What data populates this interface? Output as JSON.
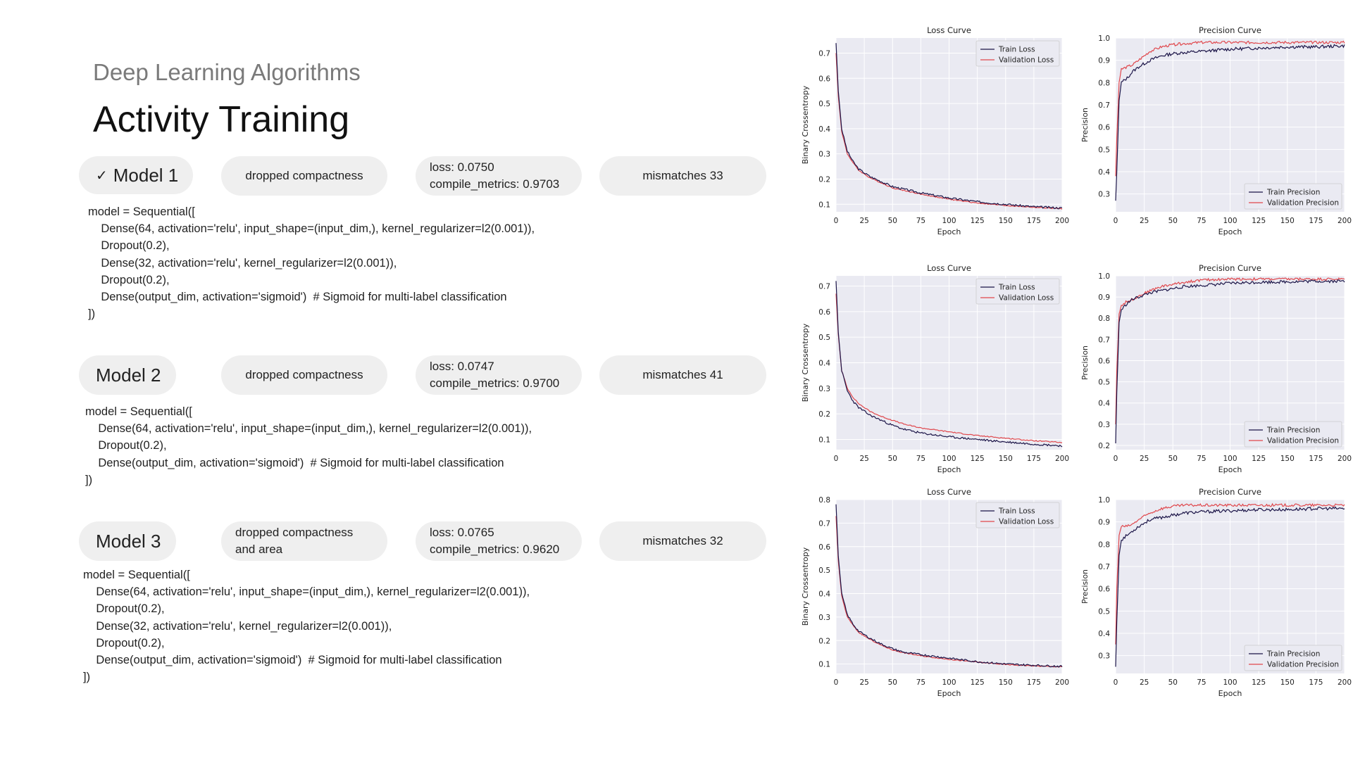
{
  "header": {
    "subtitle": "Deep Learning Algorithms",
    "title": "Activity Training"
  },
  "models": [
    {
      "name": "Model 1",
      "selected": true,
      "dropped": [
        "dropped compactness"
      ],
      "loss": "loss: 0.0750",
      "metrics": "compile_metrics: 0.9703",
      "mismatches": "mismatches 33",
      "code": "model = Sequential([\n    Dense(64, activation='relu', input_shape=(input_dim,), kernel_regularizer=l2(0.001)),\n    Dropout(0.2),\n    Dense(32, activation='relu', kernel_regularizer=l2(0.001)),\n    Dropout(0.2),\n    Dense(output_dim, activation='sigmoid')  # Sigmoid for multi-label classification\n])"
    },
    {
      "name": "Model 2",
      "selected": false,
      "dropped": [
        "dropped compactness"
      ],
      "loss": "loss: 0.0747",
      "metrics": "compile_metrics: 0.9700",
      "mismatches": "mismatches 41",
      "code": "model = Sequential([\n    Dense(64, activation='relu', input_shape=(input_dim,), kernel_regularizer=l2(0.001)),\n    Dropout(0.2),\n    Dense(output_dim, activation='sigmoid')  # Sigmoid for multi-label classification\n])"
    },
    {
      "name": "Model 3",
      "selected": false,
      "dropped": [
        "dropped compactness",
        "and area"
      ],
      "loss": "loss: 0.0765",
      "metrics": "compile_metrics: 0.9620",
      "mismatches": "mismatches 32",
      "code": "model = Sequential([\n    Dense(64, activation='relu', input_shape=(input_dim,), kernel_regularizer=l2(0.001)),\n    Dropout(0.2),\n    Dense(32, activation='relu', kernel_regularizer=l2(0.001)),\n    Dropout(0.2),\n    Dense(output_dim, activation='sigmoid')  # Sigmoid for multi-label classification\n])"
    }
  ],
  "colors": {
    "train": "#1b1447",
    "validation": "#e0474c",
    "plot_bg": "#eaeaf2",
    "grid": "#ffffff"
  },
  "chart_data": [
    {
      "type": "line",
      "title": "Loss Curve",
      "xlabel": "Epoch",
      "ylabel": "Binary Crossentropy",
      "xlim": [
        0,
        200
      ],
      "ylim": [
        0.07,
        0.76
      ],
      "xticks": [
        0,
        25,
        50,
        75,
        100,
        125,
        150,
        175,
        200
      ],
      "yticks": [
        0.1,
        0.2,
        0.3,
        0.4,
        0.5,
        0.6,
        0.7
      ],
      "legend": "top-right",
      "grid": true,
      "series": [
        {
          "name": "Train Loss",
          "x": [
            0,
            2,
            5,
            10,
            15,
            20,
            30,
            40,
            50,
            60,
            75,
            100,
            125,
            150,
            175,
            200
          ],
          "y": [
            0.74,
            0.55,
            0.4,
            0.31,
            0.27,
            0.24,
            0.21,
            0.19,
            0.17,
            0.16,
            0.145,
            0.125,
            0.11,
            0.1,
            0.09,
            0.085
          ]
        },
        {
          "name": "Validation Loss",
          "x": [
            0,
            2,
            5,
            10,
            15,
            20,
            30,
            40,
            50,
            60,
            75,
            100,
            125,
            150,
            175,
            200
          ],
          "y": [
            0.7,
            0.53,
            0.39,
            0.3,
            0.265,
            0.235,
            0.205,
            0.185,
            0.165,
            0.155,
            0.14,
            0.12,
            0.105,
            0.095,
            0.088,
            0.082
          ]
        }
      ]
    },
    {
      "type": "line",
      "title": "Precision Curve",
      "xlabel": "Epoch",
      "ylabel": "Precision",
      "xlim": [
        0,
        200
      ],
      "ylim": [
        0.22,
        1.0
      ],
      "xticks": [
        0,
        25,
        50,
        75,
        100,
        125,
        150,
        175,
        200
      ],
      "yticks": [
        0.3,
        0.4,
        0.5,
        0.6,
        0.7,
        0.8,
        0.9,
        1.0
      ],
      "legend": "bottom-right",
      "grid": true,
      "series": [
        {
          "name": "Train Precision",
          "x": [
            0,
            1,
            3,
            5,
            10,
            15,
            20,
            30,
            40,
            50,
            60,
            75,
            100,
            125,
            150,
            175,
            200
          ],
          "y": [
            0.27,
            0.4,
            0.72,
            0.8,
            0.82,
            0.85,
            0.87,
            0.9,
            0.92,
            0.93,
            0.935,
            0.94,
            0.95,
            0.955,
            0.96,
            0.96,
            0.965
          ]
        },
        {
          "name": "Validation Precision",
          "x": [
            0,
            1,
            3,
            5,
            10,
            15,
            20,
            30,
            40,
            50,
            60,
            75,
            100,
            125,
            150,
            175,
            200
          ],
          "y": [
            0.38,
            0.55,
            0.8,
            0.86,
            0.87,
            0.88,
            0.9,
            0.94,
            0.96,
            0.97,
            0.975,
            0.98,
            0.98,
            0.98,
            0.98,
            0.98,
            0.98
          ]
        }
      ]
    },
    {
      "type": "line",
      "title": "Loss Curve",
      "xlabel": "Epoch",
      "ylabel": "Binary Crossentropy",
      "xlim": [
        0,
        200
      ],
      "ylim": [
        0.06,
        0.74
      ],
      "xticks": [
        0,
        25,
        50,
        75,
        100,
        125,
        150,
        175,
        200
      ],
      "yticks": [
        0.1,
        0.2,
        0.3,
        0.4,
        0.5,
        0.6,
        0.7
      ],
      "legend": "top-right",
      "grid": true,
      "series": [
        {
          "name": "Train Loss",
          "x": [
            0,
            2,
            5,
            10,
            15,
            20,
            30,
            40,
            50,
            60,
            75,
            100,
            125,
            150,
            175,
            200
          ],
          "y": [
            0.72,
            0.52,
            0.37,
            0.29,
            0.25,
            0.225,
            0.195,
            0.175,
            0.155,
            0.14,
            0.125,
            0.11,
            0.1,
            0.09,
            0.082,
            0.075
          ]
        },
        {
          "name": "Validation Loss",
          "x": [
            0,
            2,
            5,
            10,
            15,
            20,
            30,
            40,
            50,
            60,
            75,
            100,
            125,
            150,
            175,
            200
          ],
          "y": [
            0.67,
            0.51,
            0.37,
            0.3,
            0.265,
            0.24,
            0.21,
            0.19,
            0.175,
            0.16,
            0.145,
            0.13,
            0.115,
            0.105,
            0.095,
            0.088
          ]
        }
      ]
    },
    {
      "type": "line",
      "title": "Precision Curve",
      "xlabel": "Epoch",
      "ylabel": "Precision",
      "xlim": [
        0,
        200
      ],
      "ylim": [
        0.18,
        1.0
      ],
      "xticks": [
        0,
        25,
        50,
        75,
        100,
        125,
        150,
        175,
        200
      ],
      "yticks": [
        0.2,
        0.3,
        0.4,
        0.5,
        0.6,
        0.7,
        0.8,
        0.9,
        1.0
      ],
      "legend": "bottom-right",
      "grid": true,
      "series": [
        {
          "name": "Train Precision",
          "x": [
            0,
            1,
            3,
            5,
            10,
            15,
            20,
            30,
            40,
            50,
            60,
            75,
            100,
            125,
            150,
            175,
            200
          ],
          "y": [
            0.21,
            0.45,
            0.78,
            0.84,
            0.87,
            0.89,
            0.9,
            0.92,
            0.93,
            0.94,
            0.95,
            0.955,
            0.965,
            0.97,
            0.972,
            0.975,
            0.975
          ]
        },
        {
          "name": "Validation Precision",
          "x": [
            0,
            1,
            3,
            5,
            10,
            15,
            20,
            30,
            40,
            50,
            60,
            75,
            100,
            125,
            150,
            175,
            200
          ],
          "y": [
            0.3,
            0.55,
            0.82,
            0.86,
            0.88,
            0.89,
            0.905,
            0.93,
            0.95,
            0.96,
            0.97,
            0.98,
            0.985,
            0.985,
            0.985,
            0.985,
            0.985
          ]
        }
      ]
    },
    {
      "type": "line",
      "title": "Loss Curve",
      "xlabel": "Epoch",
      "ylabel": "Binary Crossentropy",
      "xlim": [
        0,
        200
      ],
      "ylim": [
        0.06,
        0.8
      ],
      "xticks": [
        0,
        25,
        50,
        75,
        100,
        125,
        150,
        175,
        200
      ],
      "yticks": [
        0.1,
        0.2,
        0.3,
        0.4,
        0.5,
        0.6,
        0.7,
        0.8
      ],
      "legend": "top-right",
      "grid": true,
      "series": [
        {
          "name": "Train Loss",
          "x": [
            0,
            2,
            5,
            10,
            15,
            20,
            30,
            40,
            50,
            60,
            75,
            100,
            125,
            150,
            175,
            200
          ],
          "y": [
            0.78,
            0.56,
            0.4,
            0.31,
            0.27,
            0.24,
            0.21,
            0.185,
            0.165,
            0.15,
            0.14,
            0.125,
            0.11,
            0.1,
            0.095,
            0.09
          ]
        },
        {
          "name": "Validation Loss",
          "x": [
            0,
            2,
            5,
            10,
            15,
            20,
            30,
            40,
            50,
            60,
            75,
            100,
            125,
            150,
            175,
            200
          ],
          "y": [
            0.73,
            0.54,
            0.39,
            0.3,
            0.265,
            0.235,
            0.205,
            0.18,
            0.16,
            0.148,
            0.135,
            0.12,
            0.108,
            0.098,
            0.092,
            0.088
          ]
        }
      ]
    },
    {
      "type": "line",
      "title": "Precision Curve",
      "xlabel": "Epoch",
      "ylabel": "Precision",
      "xlim": [
        0,
        200
      ],
      "ylim": [
        0.22,
        1.0
      ],
      "xticks": [
        0,
        25,
        50,
        75,
        100,
        125,
        150,
        175,
        200
      ],
      "yticks": [
        0.3,
        0.4,
        0.5,
        0.6,
        0.7,
        0.8,
        0.9,
        1.0
      ],
      "legend": "bottom-right",
      "grid": true,
      "series": [
        {
          "name": "Train Precision",
          "x": [
            0,
            1,
            3,
            5,
            10,
            15,
            20,
            30,
            40,
            50,
            60,
            75,
            100,
            125,
            150,
            175,
            200
          ],
          "y": [
            0.25,
            0.45,
            0.75,
            0.82,
            0.84,
            0.86,
            0.88,
            0.91,
            0.92,
            0.93,
            0.94,
            0.945,
            0.95,
            0.955,
            0.955,
            0.96,
            0.96
          ]
        },
        {
          "name": "Validation Precision",
          "x": [
            0,
            1,
            3,
            5,
            10,
            15,
            20,
            30,
            40,
            50,
            60,
            75,
            100,
            125,
            150,
            175,
            200
          ],
          "y": [
            0.35,
            0.6,
            0.84,
            0.88,
            0.88,
            0.89,
            0.91,
            0.94,
            0.96,
            0.97,
            0.975,
            0.975,
            0.975,
            0.975,
            0.975,
            0.975,
            0.975
          ]
        }
      ]
    }
  ]
}
